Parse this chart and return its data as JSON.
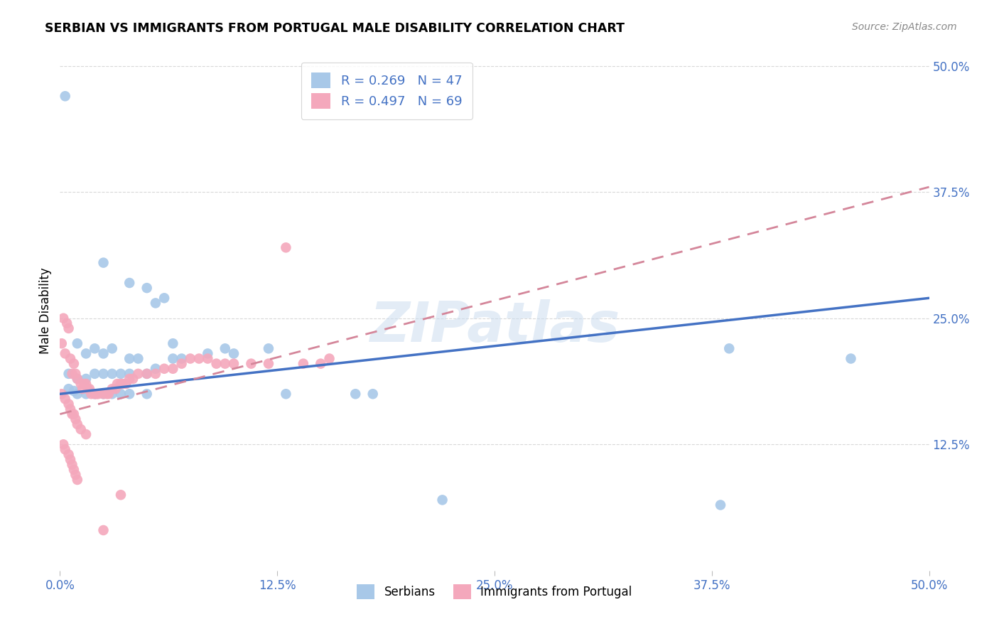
{
  "title": "SERBIAN VS IMMIGRANTS FROM PORTUGAL MALE DISABILITY CORRELATION CHART",
  "source": "Source: ZipAtlas.com",
  "ylabel": "Male Disability",
  "xlim": [
    0.0,
    0.5
  ],
  "ylim": [
    0.0,
    0.5
  ],
  "xtick_labels": [
    "0.0%",
    "",
    "12.5%",
    "",
    "25.0%",
    "",
    "37.5%",
    "",
    "50.0%"
  ],
  "xtick_vals": [
    0.0,
    0.0625,
    0.125,
    0.1875,
    0.25,
    0.3125,
    0.375,
    0.4375,
    0.5
  ],
  "ytick_labels": [
    "12.5%",
    "25.0%",
    "37.5%",
    "50.0%"
  ],
  "ytick_vals": [
    0.125,
    0.25,
    0.375,
    0.5
  ],
  "serbian_color": "#a8c8e8",
  "portugal_color": "#f4a8bc",
  "serbian_line_color": "#4472c4",
  "portugal_line_color": "#d4869a",
  "legend_blue_color": "#4472c4",
  "serbian_R": 0.269,
  "serbian_N": 47,
  "portugal_R": 0.497,
  "portugal_N": 69,
  "serbian_points": [
    [
      0.003,
      0.47
    ],
    [
      0.025,
      0.305
    ],
    [
      0.04,
      0.285
    ],
    [
      0.05,
      0.28
    ],
    [
      0.055,
      0.265
    ],
    [
      0.06,
      0.27
    ],
    [
      0.065,
      0.225
    ],
    [
      0.01,
      0.225
    ],
    [
      0.015,
      0.215
    ],
    [
      0.02,
      0.22
    ],
    [
      0.025,
      0.215
    ],
    [
      0.03,
      0.22
    ],
    [
      0.04,
      0.21
    ],
    [
      0.045,
      0.21
    ],
    [
      0.065,
      0.21
    ],
    [
      0.07,
      0.21
    ],
    [
      0.085,
      0.215
    ],
    [
      0.095,
      0.22
    ],
    [
      0.1,
      0.215
    ],
    [
      0.12,
      0.22
    ],
    [
      0.005,
      0.195
    ],
    [
      0.01,
      0.19
    ],
    [
      0.015,
      0.19
    ],
    [
      0.02,
      0.195
    ],
    [
      0.025,
      0.195
    ],
    [
      0.03,
      0.195
    ],
    [
      0.035,
      0.195
    ],
    [
      0.04,
      0.195
    ],
    [
      0.05,
      0.195
    ],
    [
      0.055,
      0.2
    ],
    [
      0.005,
      0.18
    ],
    [
      0.008,
      0.178
    ],
    [
      0.01,
      0.175
    ],
    [
      0.015,
      0.175
    ],
    [
      0.02,
      0.175
    ],
    [
      0.025,
      0.175
    ],
    [
      0.03,
      0.175
    ],
    [
      0.035,
      0.175
    ],
    [
      0.04,
      0.175
    ],
    [
      0.05,
      0.175
    ],
    [
      0.13,
      0.175
    ],
    [
      0.17,
      0.175
    ],
    [
      0.18,
      0.175
    ],
    [
      0.22,
      0.07
    ],
    [
      0.385,
      0.22
    ],
    [
      0.455,
      0.21
    ],
    [
      0.38,
      0.065
    ]
  ],
  "portugal_points": [
    [
      0.002,
      0.25
    ],
    [
      0.004,
      0.245
    ],
    [
      0.005,
      0.24
    ],
    [
      0.001,
      0.225
    ],
    [
      0.003,
      0.215
    ],
    [
      0.006,
      0.21
    ],
    [
      0.008,
      0.205
    ],
    [
      0.007,
      0.195
    ],
    [
      0.009,
      0.195
    ],
    [
      0.01,
      0.19
    ],
    [
      0.012,
      0.185
    ],
    [
      0.013,
      0.18
    ],
    [
      0.014,
      0.185
    ],
    [
      0.015,
      0.185
    ],
    [
      0.016,
      0.18
    ],
    [
      0.017,
      0.18
    ],
    [
      0.018,
      0.175
    ],
    [
      0.02,
      0.175
    ],
    [
      0.021,
      0.175
    ],
    [
      0.022,
      0.175
    ],
    [
      0.025,
      0.175
    ],
    [
      0.027,
      0.175
    ],
    [
      0.028,
      0.175
    ],
    [
      0.03,
      0.18
    ],
    [
      0.032,
      0.18
    ],
    [
      0.033,
      0.185
    ],
    [
      0.035,
      0.185
    ],
    [
      0.036,
      0.185
    ],
    [
      0.038,
      0.185
    ],
    [
      0.04,
      0.19
    ],
    [
      0.042,
      0.19
    ],
    [
      0.045,
      0.195
    ],
    [
      0.05,
      0.195
    ],
    [
      0.055,
      0.195
    ],
    [
      0.06,
      0.2
    ],
    [
      0.065,
      0.2
    ],
    [
      0.07,
      0.205
    ],
    [
      0.075,
      0.21
    ],
    [
      0.08,
      0.21
    ],
    [
      0.085,
      0.21
    ],
    [
      0.09,
      0.205
    ],
    [
      0.095,
      0.205
    ],
    [
      0.1,
      0.205
    ],
    [
      0.11,
      0.205
    ],
    [
      0.12,
      0.205
    ],
    [
      0.13,
      0.32
    ],
    [
      0.14,
      0.205
    ],
    [
      0.15,
      0.205
    ],
    [
      0.155,
      0.21
    ],
    [
      0.001,
      0.175
    ],
    [
      0.003,
      0.17
    ],
    [
      0.005,
      0.165
    ],
    [
      0.006,
      0.16
    ],
    [
      0.007,
      0.155
    ],
    [
      0.008,
      0.155
    ],
    [
      0.009,
      0.15
    ],
    [
      0.01,
      0.145
    ],
    [
      0.012,
      0.14
    ],
    [
      0.015,
      0.135
    ],
    [
      0.002,
      0.125
    ],
    [
      0.003,
      0.12
    ],
    [
      0.005,
      0.115
    ],
    [
      0.006,
      0.11
    ],
    [
      0.007,
      0.105
    ],
    [
      0.008,
      0.1
    ],
    [
      0.009,
      0.095
    ],
    [
      0.01,
      0.09
    ],
    [
      0.025,
      0.04
    ],
    [
      0.035,
      0.075
    ]
  ],
  "watermark": "ZIPatlas",
  "background_color": "#ffffff",
  "grid_color": "#d8d8d8"
}
